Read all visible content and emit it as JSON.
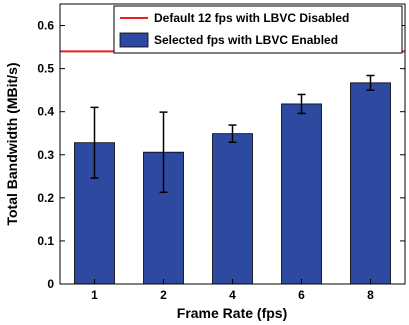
{
  "chart_data": {
    "type": "bar",
    "title": "",
    "xlabel": "Frame Rate (fps)",
    "ylabel": "Total Bandwidth (MBit/s)",
    "categories": [
      "1",
      "2",
      "4",
      "6",
      "8"
    ],
    "ylim": [
      0,
      0.65
    ],
    "yticks": [
      "0",
      "0.1",
      "0.2",
      "0.3",
      "0.4",
      "0.5",
      "0.6"
    ],
    "series": [
      {
        "name": "Selected fps with LBVC Enabled",
        "values": [
          0.328,
          0.306,
          0.349,
          0.418,
          0.467
        ],
        "error": [
          0.082,
          0.093,
          0.02,
          0.022,
          0.017
        ],
        "color": "#2e4aa0"
      }
    ],
    "reference_line": {
      "name": "Default 12 fps with LBVC Disabled",
      "value": 0.54,
      "color": "#e8221b"
    },
    "legend_position": "top-right",
    "grid": false
  }
}
